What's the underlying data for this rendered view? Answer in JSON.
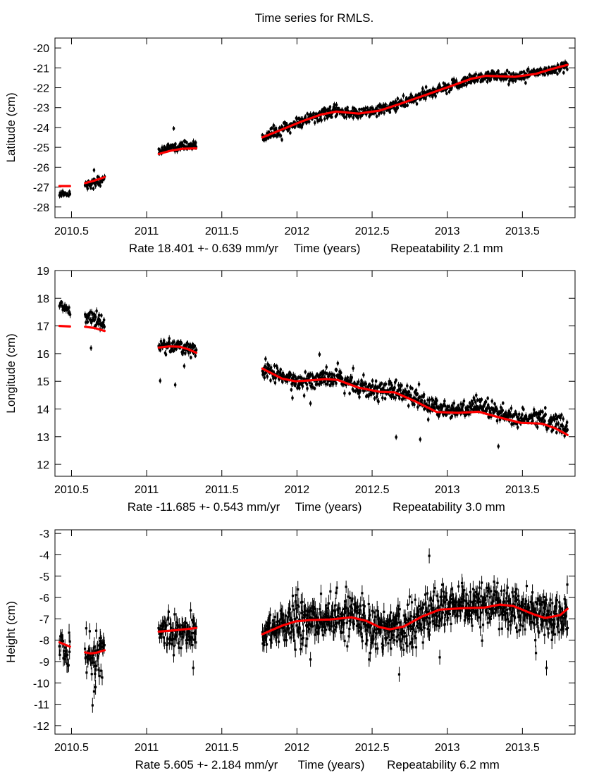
{
  "chart_data": [
    {
      "type": "scatter",
      "figure_title": "Time series for RMLS.",
      "title": "",
      "ylabel": "Latitude (cm)",
      "xlabel_parts": [
        "Rate 18.401 +- 0.639 mm/yr",
        "Time (years)",
        "Repeatability 2.1 mm"
      ],
      "xlim": [
        2010.39,
        2013.85
      ],
      "ylim": [
        -28.54,
        -19.5
      ],
      "xticks": [
        2010.5,
        2011,
        2011.5,
        2012,
        2012.5,
        2013,
        2013.5
      ],
      "xtick_labels": [
        "2010.5",
        "2011",
        "2011.5",
        "2012",
        "2012.5",
        "2013",
        "2013.5"
      ],
      "yticks": [
        -20,
        -21,
        -22,
        -23,
        -24,
        -25,
        -26,
        -27,
        -28
      ],
      "ytick_labels": [
        "-20",
        "-21",
        "-22",
        "-23",
        "-24",
        "-25",
        "-26",
        "-27",
        "-28"
      ],
      "rate_mm_per_yr": 18.401,
      "rate_sigma_mm_per_yr": 0.639,
      "repeatability_mm": 2.1,
      "grid": false,
      "series": [
        {
          "name": "observations",
          "marker": "point-with-errorbar",
          "color": "#000000",
          "error_bar_cm": 0.12,
          "segments": [
            {
              "x": [
                2010.42,
                2010.49
              ],
              "count": 20,
              "offset": [
                -0.38,
                -0.35
              ],
              "scatter": 0.08
            },
            {
              "x": [
                2010.59,
                2010.72
              ],
              "count": 45,
              "offset": [
                -0.12,
                -0.08
              ],
              "scatter": 0.12
            },
            {
              "x": [
                2011.08,
                2011.33
              ],
              "count": 80,
              "offset": [
                0.15,
                0.15
              ],
              "scatter": 0.09
            },
            {
              "x": [
                2011.77,
                2013.8
              ],
              "count": 700,
              "offset": [
                0.0,
                0.0
              ],
              "scatter": 0.14
            }
          ],
          "outliers": [
            [
              2010.65,
              -26.15
            ],
            [
              2011.18,
              -24.05
            ],
            [
              2011.9,
              -24.62
            ],
            [
              2012.67,
              -22.55
            ],
            [
              2012.88,
              -22.3
            ]
          ]
        },
        {
          "name": "fit",
          "type": "line",
          "color": "#ff0000",
          "segments": [
            {
              "x": [
                2010.42,
                2010.49
              ],
              "y": [
                -26.95,
                -26.95
              ]
            },
            {
              "x": [
                2010.59,
                2010.65,
                2010.72
              ],
              "y": [
                -26.8,
                -26.68,
                -26.5
              ]
            },
            {
              "x": [
                2011.08,
                2011.16,
                2011.24,
                2011.33
              ],
              "y": [
                -25.33,
                -25.17,
                -25.07,
                -25.05
              ]
            },
            {
              "x": [
                2011.77,
                2011.9,
                2012.03,
                2012.16,
                2012.26,
                2012.41,
                2012.55,
                2012.69,
                2012.88,
                2013.05,
                2013.16,
                2013.26,
                2013.45,
                2013.59,
                2013.7,
                2013.8
              ],
              "y": [
                -24.5,
                -24.1,
                -23.7,
                -23.35,
                -23.2,
                -23.3,
                -23.15,
                -22.8,
                -22.3,
                -21.85,
                -21.55,
                -21.4,
                -21.45,
                -21.3,
                -21.05,
                -20.85
              ]
            }
          ]
        }
      ]
    },
    {
      "type": "scatter",
      "title": "",
      "ylabel": "Longitude (cm)",
      "xlabel_parts": [
        "Rate -11.685 +- 0.543 mm/yr",
        "Time (years)",
        "Repeatability 3.0 mm"
      ],
      "xlim": [
        2010.39,
        2013.85
      ],
      "ylim": [
        11.57,
        19.0
      ],
      "xticks": [
        2010.5,
        2011,
        2011.5,
        2012,
        2012.5,
        2013,
        2013.5
      ],
      "xtick_labels": [
        "2010.5",
        "2011",
        "2011.5",
        "2012",
        "2012.5",
        "2013",
        "2013.5"
      ],
      "yticks": [
        19,
        18,
        17,
        16,
        15,
        14,
        13,
        12
      ],
      "ytick_labels": [
        "19",
        "18",
        "17",
        "16",
        "15",
        "14",
        "13",
        "12"
      ],
      "rate_mm_per_yr": -11.685,
      "rate_sigma_mm_per_yr": 0.543,
      "repeatability_mm": 3.0,
      "grid": false,
      "series": [
        {
          "name": "observations",
          "marker": "point-with-errorbar",
          "color": "#000000",
          "error_bar_cm": 0.1,
          "segments": [
            {
              "x": [
                2010.42,
                2010.49
              ],
              "count": 20,
              "offset": [
                0.85,
                0.45
              ],
              "scatter": 0.08
            },
            {
              "x": [
                2010.59,
                2010.72
              ],
              "count": 45,
              "offset": [
                0.4,
                0.3
              ],
              "scatter": 0.13
            },
            {
              "x": [
                2011.08,
                2011.33
              ],
              "count": 80,
              "offset": [
                0.02,
                0.02
              ],
              "scatter": 0.12
            },
            {
              "x": [
                2011.77,
                2013.8
              ],
              "count": 700,
              "offset": [
                0.0,
                0.2
              ],
              "scatter": 0.17
            }
          ],
          "outliers": [
            [
              2010.63,
              16.2
            ],
            [
              2011.09,
              15.02
            ],
            [
              2011.19,
              14.87
            ],
            [
              2011.25,
              15.55
            ],
            [
              2012.15,
              15.97
            ],
            [
              2011.97,
              14.4
            ],
            [
              2012.09,
              14.2
            ],
            [
              2012.66,
              12.98
            ],
            [
              2012.82,
              12.9
            ],
            [
              2013.34,
              12.65
            ]
          ]
        },
        {
          "name": "fit",
          "type": "line",
          "color": "#ff0000",
          "segments": [
            {
              "x": [
                2010.42,
                2010.49
              ],
              "y": [
                17.0,
                16.98
              ]
            },
            {
              "x": [
                2010.59,
                2010.65,
                2010.72
              ],
              "y": [
                16.97,
                16.93,
                16.82
              ]
            },
            {
              "x": [
                2011.08,
                2011.15,
                2011.22,
                2011.28,
                2011.33
              ],
              "y": [
                16.22,
                16.26,
                16.25,
                16.15,
                16.03
              ]
            },
            {
              "x": [
                2011.77,
                2011.9,
                2011.99,
                2012.08,
                2012.19,
                2012.27,
                2012.41,
                2012.55,
                2012.65,
                2012.79,
                2012.93,
                2013.07,
                2013.21,
                2013.35,
                2013.49,
                2013.63,
                2013.72,
                2013.8
              ],
              "y": [
                15.46,
                15.1,
                15.0,
                15.03,
                15.08,
                15.05,
                14.77,
                14.62,
                14.6,
                14.27,
                13.89,
                13.86,
                13.9,
                13.69,
                13.5,
                13.47,
                13.3,
                13.06
              ]
            }
          ]
        }
      ]
    },
    {
      "type": "scatter",
      "title": "",
      "ylabel": "Height (cm)",
      "xlabel_parts": [
        "Rate 5.605 +- 2.184 mm/yr",
        "Time (years)",
        "Repeatability 6.2 mm"
      ],
      "xlim": [
        2010.39,
        2013.85
      ],
      "ylim": [
        -12.4,
        -2.83
      ],
      "xticks": [
        2010.5,
        2011,
        2011.5,
        2012,
        2012.5,
        2013,
        2013.5
      ],
      "xtick_labels": [
        "2010.5",
        "2011",
        "2011.5",
        "2012",
        "2012.5",
        "2013",
        "2013.5"
      ],
      "yticks": [
        -3,
        -4,
        -5,
        -6,
        -7,
        -8,
        -9,
        -10,
        -11,
        -12
      ],
      "ytick_labels": [
        "-3",
        "-4",
        "-5",
        "-6",
        "-7",
        "-8",
        "-9",
        "-10",
        "-11",
        "-12"
      ],
      "rate_mm_per_yr": 5.605,
      "rate_sigma_mm_per_yr": 2.184,
      "repeatability_mm": 6.2,
      "grid": false,
      "series": [
        {
          "name": "observations",
          "marker": "square-with-errorbar",
          "color": "#000000",
          "error_bar_cm": 0.35,
          "segments": [
            {
              "x": [
                2010.42,
                2010.49
              ],
              "count": 22,
              "offset": [
                0.0,
                -0.4
              ],
              "scatter": 0.35
            },
            {
              "x": [
                2010.59,
                2010.72
              ],
              "count": 50,
              "offset": [
                -0.1,
                -0.1
              ],
              "scatter": 0.45
            },
            {
              "x": [
                2011.08,
                2011.33
              ],
              "count": 90,
              "offset": [
                0.0,
                -0.2
              ],
              "scatter": 0.4
            },
            {
              "x": [
                2011.77,
                2013.8
              ],
              "count": 900,
              "offset": [
                0.0,
                0.0
              ],
              "scatter": 0.5
            }
          ],
          "outliers": [
            [
              2010.64,
              -11.05
            ],
            [
              2010.65,
              -10.4
            ],
            [
              2010.66,
              -10.2
            ],
            [
              2011.18,
              -8.7
            ],
            [
              2011.31,
              -9.3
            ],
            [
              2012.09,
              -8.9
            ],
            [
              2012.48,
              -8.9
            ],
            [
              2012.68,
              -9.6
            ],
            [
              2012.88,
              -4.05
            ],
            [
              2012.95,
              -8.8
            ],
            [
              2013.59,
              -8.6
            ],
            [
              2013.66,
              -9.3
            ]
          ]
        },
        {
          "name": "fit",
          "type": "line",
          "color": "#ff0000",
          "segments": [
            {
              "x": [
                2010.42,
                2010.49
              ],
              "y": [
                -8.1,
                -8.3
              ]
            },
            {
              "x": [
                2010.59,
                2010.63,
                2010.67,
                2010.72
              ],
              "y": [
                -8.57,
                -8.62,
                -8.58,
                -8.47
              ]
            },
            {
              "x": [
                2011.08,
                2011.2,
                2011.33
              ],
              "y": [
                -7.6,
                -7.53,
                -7.43
              ]
            },
            {
              "x": [
                2011.77,
                2011.9,
                2011.99,
                2012.08,
                2012.22,
                2012.32,
                2012.36,
                2012.46,
                2012.55,
                2012.62,
                2012.71,
                2012.83,
                2012.95,
                2013.11,
                2013.25,
                2013.35,
                2013.44,
                2013.58,
                2013.65,
                2013.75,
                2013.8
              ],
              "y": [
                -7.72,
                -7.32,
                -7.12,
                -7.06,
                -7.03,
                -6.96,
                -6.93,
                -7.09,
                -7.39,
                -7.49,
                -7.36,
                -6.9,
                -6.57,
                -6.5,
                -6.47,
                -6.33,
                -6.4,
                -6.8,
                -6.96,
                -6.83,
                -6.53
              ]
            }
          ]
        }
      ]
    }
  ]
}
